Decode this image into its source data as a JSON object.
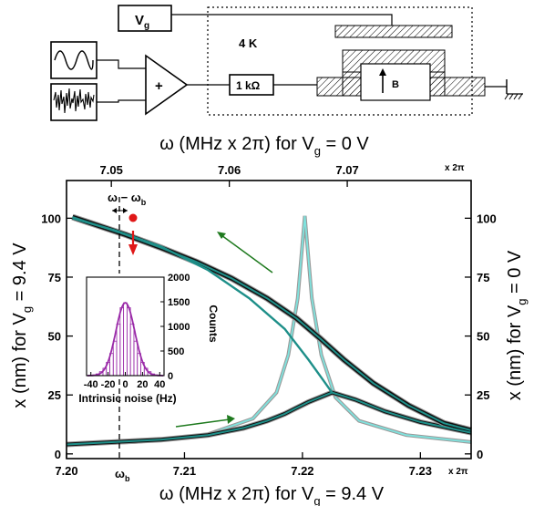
{
  "schematic": {
    "gate_label": "V",
    "gate_sub": "g",
    "temperature": "4 K",
    "adder_symbol": "+",
    "resistor": "1 kΩ",
    "field_label": "B"
  },
  "chart_data": {
    "type": "line",
    "top_axis": {
      "title_main": "ω (MHz x 2π) for V",
      "title_sub": "g",
      "title_tail": " = 0 V",
      "ticks": [
        "7.05",
        "7.06",
        "7.07"
      ],
      "tick_values": [
        7.05,
        7.06,
        7.07
      ],
      "range": [
        7.0462,
        7.0805
      ],
      "unit_note": "x 2π"
    },
    "bottom_axis": {
      "title_main": "ω (MHz x 2π) for V",
      "title_sub": "g",
      "title_tail": " = 9.4 V",
      "ticks": [
        "7.20",
        "7.21",
        "7.22",
        "7.23"
      ],
      "tick_values": [
        7.2,
        7.21,
        7.22,
        7.23
      ],
      "range": [
        7.2,
        7.2343
      ],
      "unit_note": "x 2π",
      "marker_label": "ω",
      "marker_sub": "b"
    },
    "left_axis": {
      "title_main": "x (nm) for V",
      "title_sub": "g",
      "title_tail": " = 9.4 V",
      "ticks": [
        "0",
        "25",
        "50",
        "75",
        "100"
      ],
      "tick_values": [
        0,
        25,
        50,
        75,
        100
      ],
      "range": [
        -2,
        116
      ]
    },
    "right_axis": {
      "title_main": "x (nm) for V",
      "title_sub": "g",
      "title_tail": " = 0 V",
      "ticks": [
        "0",
        "25",
        "50",
        "75",
        "100"
      ],
      "tick_values": [
        0,
        25,
        50,
        75,
        100
      ]
    },
    "detuning_label": "ω − ω",
    "detuning_sub": "b",
    "inset": {
      "type": "histogram",
      "xlabel": "Intrinsic noise (Hz)",
      "ylabel": "Counts",
      "x_ticks": [
        "-40",
        "-20",
        "0",
        "20",
        "40"
      ],
      "x_tick_values": [
        -40,
        -20,
        0,
        20,
        40
      ],
      "y_ticks": [
        "0",
        "500",
        "1000",
        "1500",
        "2000"
      ],
      "y_tick_values": [
        0,
        500,
        1000,
        1500,
        2000
      ],
      "xlim": [
        -45,
        45
      ],
      "ylim": [
        0,
        2000
      ],
      "bin_centers": [
        -40,
        -36,
        -32,
        -28,
        -24,
        -20,
        -16,
        -12,
        -8,
        -4,
        0,
        4,
        8,
        12,
        16,
        20,
        24,
        28,
        32,
        36,
        40
      ],
      "counts": [
        5,
        15,
        35,
        80,
        150,
        270,
        450,
        700,
        1050,
        1380,
        1480,
        1380,
        1050,
        700,
        450,
        270,
        150,
        80,
        35,
        15,
        5
      ],
      "fit_peak": 1480,
      "fit_sigma": 11
    },
    "series": [
      {
        "values_note": "driven response, Vg = 9.4 V (bottom/left axes): upper branch",
        "x": [
          7.2005,
          7.202,
          7.205,
          7.208,
          7.211,
          7.214,
          7.217,
          7.2195,
          7.2215,
          7.2235,
          7.226,
          7.229,
          7.232,
          7.2343
        ],
        "y": [
          100.5,
          98,
          93,
          87.5,
          81.5,
          74.5,
          66,
          57.5,
          49,
          40,
          30,
          20.5,
          13,
          10
        ]
      },
      {
        "values_note": "lower branch",
        "x": [
          7.2,
          7.204,
          7.208,
          7.212,
          7.215,
          7.217,
          7.2185,
          7.2195,
          7.2205,
          7.2215,
          7.2225,
          7.2245,
          7.227,
          7.23,
          7.2343
        ],
        "y": [
          4,
          5,
          6,
          8,
          11,
          14,
          17,
          19.5,
          22,
          24,
          26,
          23,
          18,
          13.5,
          9
        ]
      },
      {
        "values_note": "unstable branch of fit",
        "x": [
          7.2005,
          7.204,
          7.208,
          7.212,
          7.2155,
          7.2185,
          7.2205,
          7.2218,
          7.2225
        ],
        "y": [
          100,
          95,
          88,
          78,
          66,
          53,
          40,
          31,
          26
        ]
      },
      {
        "values_note": "linear resonance, Vg = 0 V (top/right axes)",
        "x": [
          7.0462,
          7.052,
          7.058,
          7.062,
          7.064,
          7.065,
          7.0658,
          7.0664,
          7.067,
          7.0678,
          7.069,
          7.071,
          7.075,
          7.0805
        ],
        "y": [
          4,
          5,
          8,
          15,
          26,
          42,
          66,
          101,
          66,
          42,
          24,
          14,
          8,
          5
        ]
      }
    ],
    "arrows": {
      "upper_sweep": "down",
      "lower_sweep": "up"
    },
    "colors": {
      "data": "#111111",
      "data_shadow": "#9a9a9a",
      "fit": "#1e8f89",
      "fit_light": "#7fe3de",
      "arrow_green": "#1f7a1f",
      "marker_red": "#e01818",
      "histogram": "#9a2aa8"
    }
  }
}
